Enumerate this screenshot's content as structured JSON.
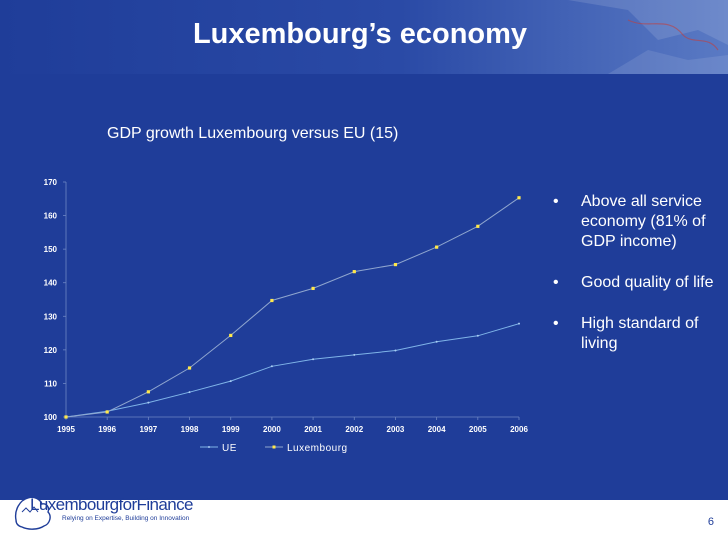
{
  "slide": {
    "title": "Luxembourg’s economy",
    "page_number": "6",
    "bullets": [
      "Above all service economy (81% of GDP income)",
      "Good quality of life",
      "High standard of living"
    ]
  },
  "logo": {
    "wordmark": "LuxembourgforFinance",
    "tagline": "Relying on Expertise, Building on Innovation"
  },
  "chart_data": {
    "type": "line",
    "title": "GDP growth Luxembourg versus EU (15)",
    "xlabel": "",
    "ylabel": "",
    "x": [
      "1995",
      "1996",
      "1997",
      "1998",
      "1999",
      "2000",
      "2001",
      "2002",
      "2003",
      "2004",
      "2005",
      "2006"
    ],
    "series": [
      {
        "name": "UE",
        "values": [
          100,
          101.7,
          104.3,
          107.4,
          110.7,
          115.1,
          117.2,
          118.5,
          119.8,
          122.4,
          124.2,
          127.8
        ],
        "color": "#7fb4e8",
        "marker": "dot"
      },
      {
        "name": "Luxembourg",
        "values": [
          100,
          101.5,
          107.5,
          114.6,
          124.3,
          134.7,
          138.3,
          143.3,
          145.4,
          150.6,
          156.8,
          165.3
        ],
        "color": "#8fa6cf",
        "marker": "square-yellow"
      }
    ],
    "ylim": [
      100,
      170
    ],
    "yticks": [
      "100",
      "110",
      "120",
      "130",
      "140",
      "150",
      "160",
      "170"
    ],
    "grid": false,
    "legend": "bottom"
  }
}
